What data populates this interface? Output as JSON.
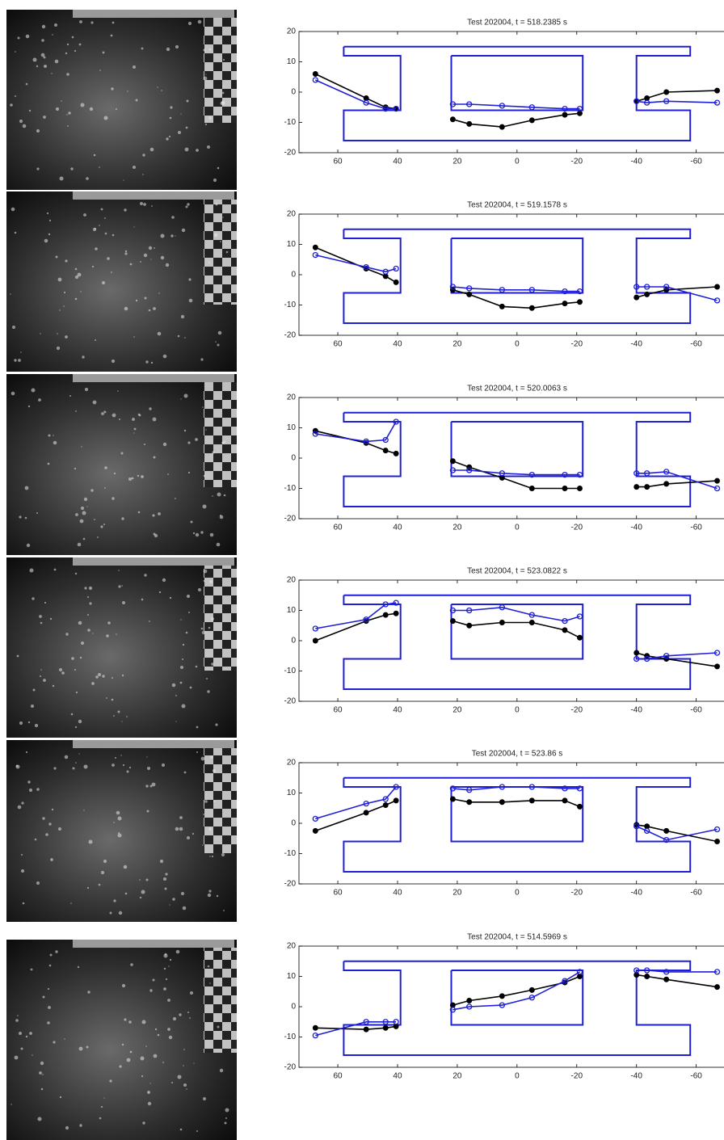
{
  "chart_data": [
    {
      "type": "line",
      "title": "Test 202004, t = 518.2385 s",
      "x": [
        67.5,
        50.5,
        44,
        40.5,
        null,
        21.5,
        16,
        5,
        -5,
        -16,
        -21,
        null,
        -40,
        -43.5,
        -50,
        -67
      ],
      "series": [
        {
          "color": "#000000",
          "values": [
            6,
            -2,
            -5,
            -5.5,
            null,
            -9,
            -10.5,
            -11.5,
            -9.3,
            -7.5,
            -7,
            null,
            -3,
            -2,
            0,
            0.5
          ]
        },
        {
          "color": "#1f1fd6",
          "values": [
            4,
            -3.5,
            -5.5,
            -5.5,
            null,
            -4,
            -4,
            -4.5,
            -5,
            -5.5,
            -5.5,
            null,
            -3,
            -3.5,
            -3,
            -3.5
          ]
        }
      ],
      "outline": {
        "color": "#1f1fd6",
        "x": [
          58,
          -58,
          -58,
          -40,
          -40,
          -58,
          -58,
          58,
          58,
          39,
          39,
          58,
          58,
          null,
          22,
          -22,
          -22,
          22,
          22
        ],
        "values": [
          15,
          15,
          12,
          12,
          -6,
          -6,
          -16,
          -16,
          -6,
          -6,
          12,
          12,
          15,
          null,
          12,
          12,
          -6,
          -6,
          12
        ]
      },
      "xlim": [
        73,
        -72
      ],
      "ylim": [
        -20,
        20
      ],
      "xticks": [
        60,
        40,
        20,
        0,
        -20,
        -40,
        -60
      ],
      "yticks": [
        -20,
        -10,
        0,
        10,
        20
      ]
    },
    {
      "type": "line",
      "title": "Test 202004, t = 519.1578 s",
      "x": [
        67.5,
        50.5,
        44,
        40.5,
        null,
        21.5,
        16,
        5,
        -5,
        -16,
        -21,
        null,
        -40,
        -43.5,
        -50,
        -67
      ],
      "series": [
        {
          "color": "#000000",
          "values": [
            9,
            2,
            -0.5,
            -2.5,
            null,
            -5,
            -6.5,
            -10.5,
            -11,
            -9.5,
            -9,
            null,
            -7.5,
            -6.5,
            -5,
            -4
          ]
        },
        {
          "color": "#1f1fd6",
          "values": [
            6.5,
            2.5,
            1,
            2,
            null,
            -4,
            -4.5,
            -5,
            -5,
            -5.5,
            -5.5,
            null,
            -4,
            -4,
            -4,
            -8.5
          ]
        }
      ],
      "outline": {
        "color": "#1f1fd6",
        "x": [
          58,
          -58,
          -58,
          -40,
          -40,
          -58,
          -58,
          58,
          58,
          39,
          39,
          58,
          58,
          null,
          22,
          -22,
          -22,
          22,
          22
        ],
        "values": [
          15,
          15,
          12,
          12,
          -6,
          -6,
          -16,
          -16,
          -6,
          -6,
          12,
          12,
          15,
          null,
          12,
          12,
          -6,
          -6,
          12
        ]
      },
      "xlim": [
        73,
        -72
      ],
      "ylim": [
        -20,
        20
      ],
      "xticks": [
        60,
        40,
        20,
        0,
        -20,
        -40,
        -60
      ],
      "yticks": [
        -20,
        -10,
        0,
        10,
        20
      ]
    },
    {
      "type": "line",
      "title": "Test 202004, t = 520.0063 s",
      "x": [
        67.5,
        50.5,
        44,
        40.5,
        null,
        21.5,
        16,
        5,
        -5,
        -16,
        -21,
        null,
        -40,
        -43.5,
        -50,
        -67
      ],
      "series": [
        {
          "color": "#000000",
          "values": [
            9,
            5,
            2.5,
            1.5,
            null,
            -1,
            -3,
            -6.5,
            -10,
            -10,
            -10,
            null,
            -9.5,
            -9.5,
            -8.5,
            -7.5
          ]
        },
        {
          "color": "#1f1fd6",
          "values": [
            8,
            5.5,
            6,
            12,
            null,
            -4,
            -4,
            -5,
            -5.5,
            -5.5,
            -5.5,
            null,
            -5,
            -5,
            -4.5,
            -10
          ]
        }
      ],
      "outline": {
        "color": "#1f1fd6",
        "x": [
          58,
          -58,
          -58,
          -40,
          -40,
          -58,
          -58,
          58,
          58,
          39,
          39,
          58,
          58,
          null,
          22,
          -22,
          -22,
          22,
          22
        ],
        "values": [
          15,
          15,
          12,
          12,
          -6,
          -6,
          -16,
          -16,
          -6,
          -6,
          12,
          12,
          15,
          null,
          12,
          12,
          -6,
          -6,
          12
        ]
      },
      "xlim": [
        73,
        -72
      ],
      "ylim": [
        -20,
        20
      ],
      "xticks": [
        60,
        40,
        20,
        0,
        -20,
        -40,
        -60
      ],
      "yticks": [
        -20,
        -10,
        0,
        10,
        20
      ]
    },
    {
      "type": "line",
      "title": "Test 202004, t = 523.0822 s",
      "x": [
        67.5,
        50.5,
        44,
        40.5,
        null,
        21.5,
        16,
        5,
        -5,
        -16,
        -21,
        null,
        -40,
        -43.5,
        -50,
        -67
      ],
      "series": [
        {
          "color": "#000000",
          "values": [
            0,
            6.5,
            8.5,
            9,
            null,
            6.5,
            5,
            6,
            6,
            3.5,
            1,
            null,
            -4,
            -5,
            -6,
            -8.5
          ]
        },
        {
          "color": "#1f1fd6",
          "values": [
            4,
            7,
            12,
            12.5,
            null,
            10,
            10,
            11,
            8.5,
            6.5,
            8,
            null,
            -6,
            -6,
            -5,
            -4
          ]
        }
      ],
      "outline": {
        "color": "#1f1fd6",
        "x": [
          58,
          -58,
          -58,
          -40,
          -40,
          -58,
          -58,
          58,
          58,
          39,
          39,
          58,
          58,
          null,
          22,
          -22,
          -22,
          22,
          22
        ],
        "values": [
          15,
          15,
          12,
          12,
          -6,
          -6,
          -16,
          -16,
          -6,
          -6,
          12,
          12,
          15,
          null,
          12,
          12,
          -6,
          -6,
          12
        ]
      },
      "xlim": [
        73,
        -72
      ],
      "ylim": [
        -20,
        20
      ],
      "xticks": [
        60,
        40,
        20,
        0,
        -20,
        -40,
        -60
      ],
      "yticks": [
        -20,
        -10,
        0,
        10,
        20
      ]
    },
    {
      "type": "line",
      "title": "Test 202004, t = 523.86 s",
      "x": [
        67.5,
        50.5,
        44,
        40.5,
        null,
        21.5,
        16,
        5,
        -5,
        -16,
        -21,
        null,
        -40,
        -43.5,
        -50,
        -67
      ],
      "series": [
        {
          "color": "#000000",
          "values": [
            -2.5,
            3.5,
            6,
            7.5,
            null,
            8,
            7,
            7,
            7.5,
            7.5,
            5.5,
            null,
            -0.5,
            -1,
            -2.5,
            -6
          ]
        },
        {
          "color": "#1f1fd6",
          "values": [
            1.5,
            6.5,
            8,
            12,
            null,
            11.5,
            11,
            12,
            12,
            11.5,
            11.5,
            null,
            -1,
            -2.5,
            -5.5,
            -2
          ]
        }
      ],
      "outline": {
        "color": "#1f1fd6",
        "x": [
          58,
          -58,
          -58,
          -40,
          -40,
          -58,
          -58,
          58,
          58,
          39,
          39,
          58,
          58,
          null,
          22,
          -22,
          -22,
          22,
          22
        ],
        "values": [
          15,
          15,
          12,
          12,
          -6,
          -6,
          -16,
          -16,
          -6,
          -6,
          12,
          12,
          15,
          null,
          12,
          12,
          -6,
          -6,
          12
        ]
      },
      "xlim": [
        73,
        -72
      ],
      "ylim": [
        -20,
        20
      ],
      "xticks": [
        60,
        40,
        20,
        0,
        -20,
        -40,
        -60
      ],
      "yticks": [
        -20,
        -10,
        0,
        10,
        20
      ]
    },
    {
      "type": "line",
      "title": "Test 202004, t = 514.5969 s",
      "x": [
        67.5,
        50.5,
        44,
        40.5,
        null,
        21.5,
        16,
        5,
        -5,
        -16,
        -21,
        null,
        -40,
        -43.5,
        -50,
        -67
      ],
      "series": [
        {
          "color": "#000000",
          "values": [
            -7,
            -7.5,
            -7,
            -6.5,
            null,
            0.5,
            2,
            3.5,
            5.5,
            8,
            10,
            null,
            10.5,
            10,
            9,
            6.5
          ]
        },
        {
          "color": "#1f1fd6",
          "values": [
            -9.5,
            -5,
            -5,
            -5,
            null,
            -1,
            0,
            0.5,
            3,
            8.5,
            11.5,
            null,
            12,
            12,
            11.5,
            11.5
          ]
        }
      ],
      "outline": {
        "color": "#1f1fd6",
        "x": [
          58,
          -58,
          -58,
          -40,
          -40,
          -58,
          -58,
          58,
          58,
          39,
          39,
          58,
          58,
          null,
          22,
          -22,
          -22,
          22,
          22
        ],
        "values": [
          15,
          15,
          12,
          12,
          -6,
          -6,
          -16,
          -16,
          -6,
          -6,
          12,
          12,
          15,
          null,
          12,
          12,
          -6,
          -6,
          12
        ]
      },
      "xlim": [
        73,
        -72
      ],
      "ylim": [
        -20,
        20
      ],
      "xticks": [
        60,
        40,
        20,
        0,
        -20,
        -40,
        -60
      ],
      "yticks": [
        -20,
        -10,
        0,
        10,
        20
      ]
    }
  ]
}
